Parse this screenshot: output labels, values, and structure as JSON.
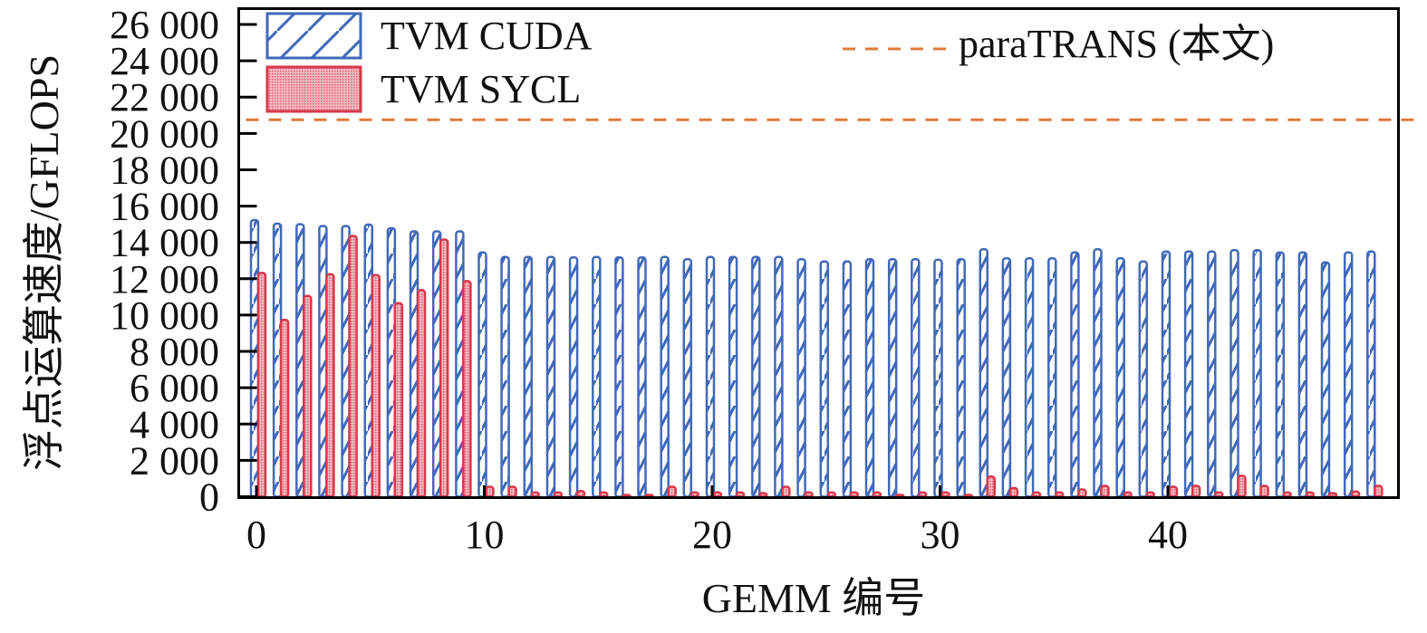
{
  "chart_data": {
    "type": "bar",
    "title": "",
    "xlabel": "GEMM 编号",
    "ylabel": "浮点运算速度/GFLOPS",
    "ylim": [
      0,
      26000
    ],
    "xlim": [
      -0.5,
      49.5
    ],
    "grid": false,
    "legend_position": "top",
    "x_ticks": [
      0,
      10,
      20,
      30,
      40
    ],
    "x_tick_labels": [
      "0",
      "10",
      "20",
      "30",
      "40"
    ],
    "y_ticks": [
      0,
      2000,
      4000,
      6000,
      8000,
      10000,
      12000,
      14000,
      16000,
      18000,
      20000,
      22000,
      24000,
      26000
    ],
    "y_tick_labels": [
      "0",
      "2 000",
      "4 000",
      "6 000",
      "8 000",
      "10 000",
      "12 000",
      "14 000",
      "16 000",
      "18 000",
      "20 000",
      "22 000",
      "24 000",
      "26 000"
    ],
    "x": [
      0,
      1,
      2,
      3,
      4,
      5,
      6,
      7,
      8,
      9,
      10,
      11,
      12,
      13,
      14,
      15,
      16,
      17,
      18,
      19,
      20,
      21,
      22,
      23,
      24,
      25,
      26,
      27,
      28,
      29,
      30,
      31,
      32,
      33,
      34,
      35,
      36,
      37,
      38,
      39,
      40,
      41,
      42,
      43,
      44,
      45,
      46,
      47,
      48,
      49
    ],
    "series": [
      {
        "name": "TVM CUDA",
        "color": "#4169b8",
        "pattern": "hatch",
        "values": [
          15230,
          15030,
          15000,
          14900,
          14900,
          14980,
          14780,
          14610,
          14610,
          14610,
          13450,
          13200,
          13200,
          13200,
          13170,
          13200,
          13170,
          13170,
          13200,
          13070,
          13200,
          13200,
          13200,
          13200,
          13070,
          12950,
          12950,
          13070,
          13070,
          13070,
          13040,
          13070,
          13620,
          13120,
          13120,
          13120,
          13450,
          13620,
          13120,
          12950,
          13500,
          13500,
          13500,
          13570,
          13570,
          13450,
          13450,
          12900,
          13450,
          13500
        ]
      },
      {
        "name": "TVM SYCL",
        "color": "#d9384c",
        "pattern": "dots",
        "values": [
          12320,
          9740,
          11060,
          12250,
          14360,
          12200,
          10660,
          11370,
          14160,
          11870,
          550,
          550,
          235,
          235,
          315,
          235,
          100,
          100,
          550,
          235,
          235,
          235,
          200,
          550,
          235,
          235,
          235,
          235,
          100,
          235,
          235,
          100,
          1110,
          480,
          235,
          235,
          400,
          600,
          235,
          235,
          550,
          600,
          235,
          1150,
          600,
          235,
          235,
          200,
          285,
          600
        ]
      }
    ],
    "reference_lines": [
      {
        "name": "paraTRANS (本文)",
        "value": 20750,
        "color": "#e07a3a",
        "style": "dashed"
      }
    ]
  }
}
